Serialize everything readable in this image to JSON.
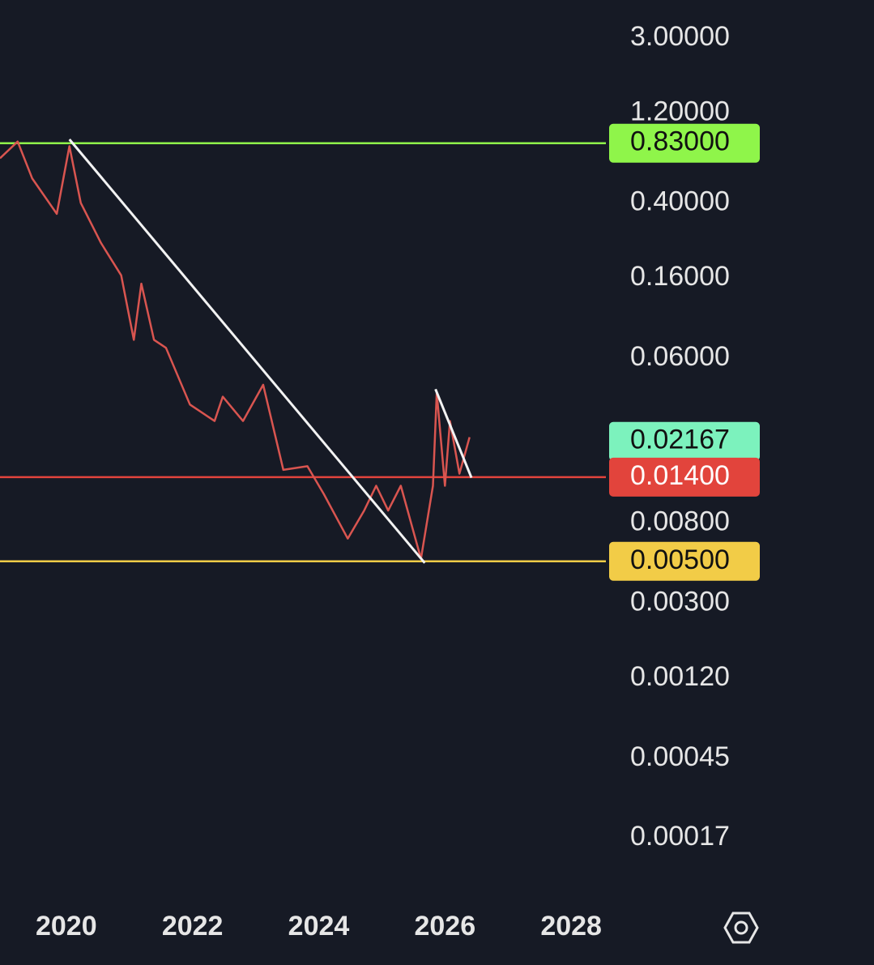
{
  "chart_data": {
    "type": "line",
    "log_scale": true,
    "color": "#d95550",
    "x": [
      2018.95,
      2019.23,
      2019.46,
      2019.85,
      2020.05,
      2020.23,
      2020.55,
      2020.87,
      2021.07,
      2021.19,
      2021.39,
      2021.58,
      2021.96,
      2022.35,
      2022.48,
      2022.8,
      2023.12,
      2023.44,
      2023.82,
      2024.08,
      2024.46,
      2024.72,
      2024.91,
      2025.1,
      2025.3,
      2025.62,
      2025.81,
      2025.87,
      2026.0,
      2026.08,
      2026.23,
      2026.39
    ],
    "values": [
      0.69,
      0.847,
      0.54,
      0.35,
      0.8,
      0.4,
      0.245,
      0.165,
      0.075,
      0.149,
      0.075,
      0.068,
      0.034,
      0.0278,
      0.0374,
      0.0278,
      0.0433,
      0.0153,
      0.016,
      0.0114,
      0.0066,
      0.0093,
      0.0126,
      0.0093,
      0.0126,
      0.00516,
      0.0126,
      0.0393,
      0.0126,
      0.0278,
      0.0146,
      0.0228
    ],
    "xlim": [
      2018.95,
      2028.55
    ],
    "xticks": [
      2020,
      2022,
      2024,
      2026,
      2028
    ],
    "ylim": [
      8.85e-05,
      4.78
    ],
    "yticks": [
      {
        "value": 3,
        "label": "3.00000"
      },
      {
        "value": 1.2,
        "label": "1.20000"
      },
      {
        "value": 0.4,
        "label": "0.40000"
      },
      {
        "value": 0.16,
        "label": "0.16000"
      },
      {
        "value": 0.06,
        "label": "0.06000"
      },
      {
        "value": 0.008,
        "label": "0.00800"
      },
      {
        "value": 0.003,
        "label": "0.00300"
      },
      {
        "value": 0.0012,
        "label": "0.00120"
      },
      {
        "value": 0.00045,
        "label": "0.00045"
      },
      {
        "value": 0.00017,
        "label": "0.00017"
      }
    ],
    "levels": [
      {
        "value": 0.83,
        "label": "0.83000",
        "color": "#8ff54a",
        "text_color": "#111111",
        "line": true
      },
      {
        "value": 0.02167,
        "label": "0.02167",
        "color": "#7cf2bd",
        "text_color": "#111111",
        "line": false
      },
      {
        "value": 0.014,
        "label": "0.01400",
        "color": "#e2443c",
        "text_color": "#ffffff",
        "line": true
      },
      {
        "value": 0.005,
        "label": "0.00500",
        "color": "#f2cc47",
        "text_color": "#111111",
        "line": true
      }
    ],
    "trendlines": [
      {
        "x": [
          2020.05,
          2025.68
        ],
        "y": [
          0.87,
          0.0049
        ]
      },
      {
        "x": [
          2025.85,
          2026.42
        ],
        "y": [
          0.041,
          0.0139
        ]
      }
    ],
    "trendline_color": "#f2f2f2"
  }
}
